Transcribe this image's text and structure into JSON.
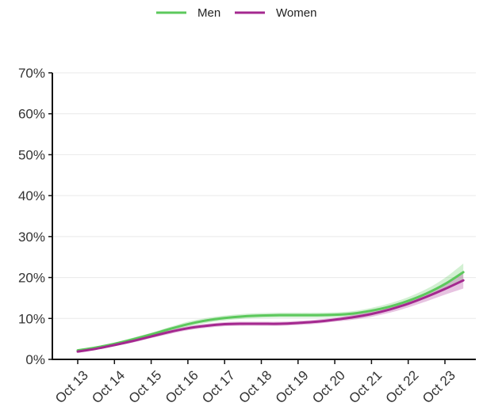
{
  "chart_data": {
    "type": "line",
    "title": "",
    "xlabel": "",
    "ylabel": "",
    "x_ticks": [
      "Oct 13",
      "Oct 14",
      "Oct 15",
      "Oct 16",
      "Oct 17",
      "Oct 18",
      "Oct 19",
      "Oct 20",
      "Oct 21",
      "Oct 22",
      "Oct 23"
    ],
    "y_ticks": [
      "0%",
      "10%",
      "20%",
      "30%",
      "40%",
      "50%",
      "60%",
      "70%"
    ],
    "ylim": [
      0,
      70
    ],
    "xlim": [
      13,
      23.5
    ],
    "grid": "horizontal",
    "legend_position": "top-center",
    "series": [
      {
        "name": "Men",
        "color": "#5cc85c",
        "band_color": "#5cc85c",
        "x": [
          13,
          13.5,
          14,
          14.5,
          15,
          15.5,
          16,
          16.5,
          17,
          17.5,
          18,
          18.5,
          19,
          19.5,
          20,
          20.5,
          21,
          21.5,
          22,
          22.5,
          23,
          23.5
        ],
        "values": [
          2.2,
          2.9,
          3.8,
          4.9,
          6.1,
          7.4,
          8.6,
          9.5,
          10.1,
          10.5,
          10.7,
          10.8,
          10.8,
          10.8,
          10.9,
          11.2,
          11.9,
          12.9,
          14.3,
          16.1,
          18.4,
          21.3
        ],
        "lower": [
          1.9,
          2.6,
          3.5,
          4.5,
          5.7,
          6.9,
          8.0,
          8.9,
          9.5,
          9.9,
          10.1,
          10.2,
          10.2,
          10.2,
          10.3,
          10.6,
          11.2,
          12.1,
          13.4,
          15.0,
          16.9,
          19.2
        ],
        "upper": [
          2.5,
          3.2,
          4.1,
          5.3,
          6.5,
          7.9,
          9.2,
          10.1,
          10.7,
          11.1,
          11.3,
          11.4,
          11.4,
          11.4,
          11.5,
          11.8,
          12.6,
          13.7,
          15.2,
          17.2,
          19.9,
          23.4
        ]
      },
      {
        "name": "Women",
        "color": "#a4288f",
        "band_color": "#c060b0",
        "x": [
          13,
          13.5,
          14,
          14.5,
          15,
          15.5,
          16,
          16.5,
          17,
          17.5,
          18,
          18.5,
          19,
          19.5,
          20,
          20.5,
          21,
          21.5,
          22,
          22.5,
          23,
          23.5
        ],
        "values": [
          1.9,
          2.6,
          3.5,
          4.5,
          5.6,
          6.7,
          7.6,
          8.2,
          8.6,
          8.7,
          8.7,
          8.7,
          8.9,
          9.2,
          9.7,
          10.3,
          11.1,
          12.2,
          13.6,
          15.3,
          17.2,
          19.3
        ],
        "lower": [
          1.6,
          2.3,
          3.2,
          4.1,
          5.2,
          6.2,
          7.1,
          7.7,
          8.1,
          8.2,
          8.2,
          8.2,
          8.4,
          8.7,
          9.2,
          9.7,
          10.4,
          11.4,
          12.7,
          14.2,
          15.8,
          17.3
        ],
        "upper": [
          2.2,
          2.9,
          3.8,
          4.9,
          6.0,
          7.2,
          8.1,
          8.7,
          9.1,
          9.2,
          9.2,
          9.2,
          9.4,
          9.7,
          10.2,
          10.9,
          11.8,
          13.0,
          14.5,
          16.4,
          18.6,
          21.3
        ]
      }
    ]
  }
}
